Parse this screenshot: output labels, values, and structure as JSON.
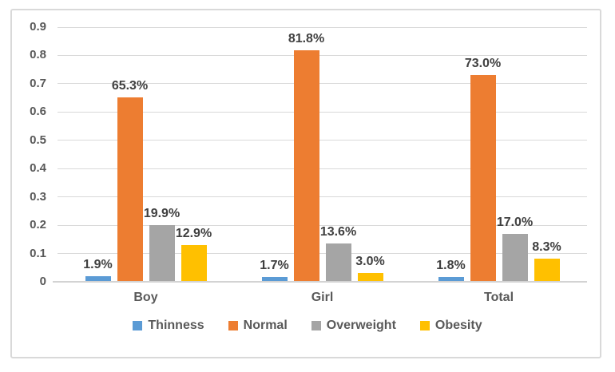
{
  "chart_data": {
    "type": "bar",
    "title": "",
    "categories": [
      "Boy",
      "Girl",
      "Total"
    ],
    "series": [
      {
        "name": "Thinness",
        "color": "#5B9BD5",
        "values": [
          0.019,
          0.017,
          0.018
        ],
        "labels": [
          "1.9%",
          "1.7%",
          "1.8%"
        ]
      },
      {
        "name": "Normal",
        "color": "#ED7D31",
        "values": [
          0.653,
          0.818,
          0.73
        ],
        "labels": [
          "65.3%",
          "81.8%",
          "73.0%"
        ]
      },
      {
        "name": "Overweight",
        "color": "#A5A5A5",
        "values": [
          0.199,
          0.136,
          0.17
        ],
        "labels": [
          "19.9%",
          "13.6%",
          "17.0%"
        ]
      },
      {
        "name": "Obesity",
        "color": "#FFC000",
        "values": [
          0.129,
          0.03,
          0.083
        ],
        "labels": [
          "12.9%",
          "3.0%",
          "8.3%"
        ]
      }
    ],
    "y_axis": {
      "min": 0,
      "max": 0.9,
      "step": 0.1,
      "tick_labels": [
        "0",
        "0.1",
        "0.2",
        "0.3",
        "0.4",
        "0.5",
        "0.6",
        "0.7",
        "0.8",
        "0.9"
      ]
    },
    "xlabel": "",
    "ylabel": "",
    "grid": true,
    "legend_position": "bottom",
    "colors": {
      "gridline": "#D9D9D9",
      "axis_line": "#D3D3D3",
      "axis_text": "#595959",
      "data_label_text": "#404040",
      "frame_border": "#D9D9D9",
      "background": "#FFFFFF"
    }
  }
}
